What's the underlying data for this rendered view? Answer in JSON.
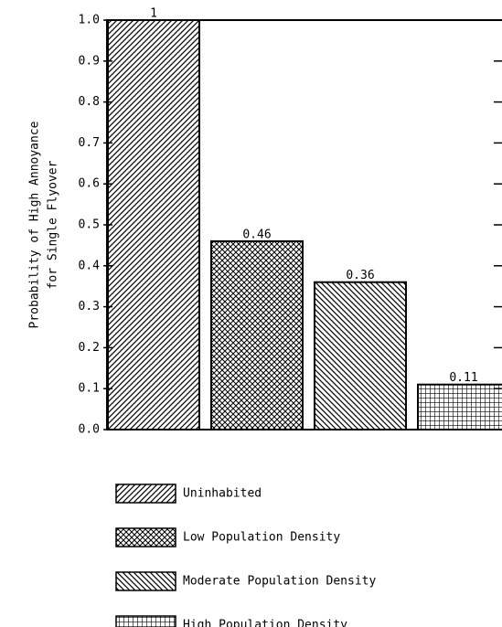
{
  "chart_data": {
    "type": "bar",
    "ylabel": [
      "Probability of High Annoyance",
      "for Single Flyover"
    ],
    "categories": [
      "Uninhabited",
      "Low Population Density",
      "Moderate Population Density",
      "High Population Density"
    ],
    "values": [
      1,
      0.46,
      0.36,
      0.11
    ],
    "patterns": [
      "diagonal",
      "crosshatch",
      "backdiagonal",
      "grid"
    ],
    "color": "#000000",
    "ylim": [
      0,
      1
    ],
    "yticks": [
      {
        "value": 0,
        "label": "0.0"
      },
      0.1,
      0.2,
      0.3,
      0.4,
      0.5,
      0.6,
      0.7,
      0.8,
      0.9,
      {
        "value": 1,
        "label": "1.0"
      }
    ],
    "legend": "bottom"
  }
}
